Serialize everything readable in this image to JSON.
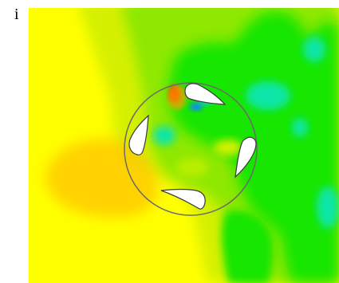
{
  "figure": {
    "panel_label": "i"
  },
  "colors": {
    "background": "#ffffff",
    "field_yellow": "#ffff00",
    "field_yellow_green": "#d4f000",
    "field_light_green": "#8ee800",
    "field_green": "#18e600",
    "field_cyan_green": "#11e6a6",
    "field_orange": "#ffc400",
    "field_red": "#ef1a00",
    "field_blue": "#0a8cf0",
    "rotor_ring": "#6b6b6b",
    "blade_fill": "#ffffff",
    "blade_outline": "#3a3a3a"
  }
}
